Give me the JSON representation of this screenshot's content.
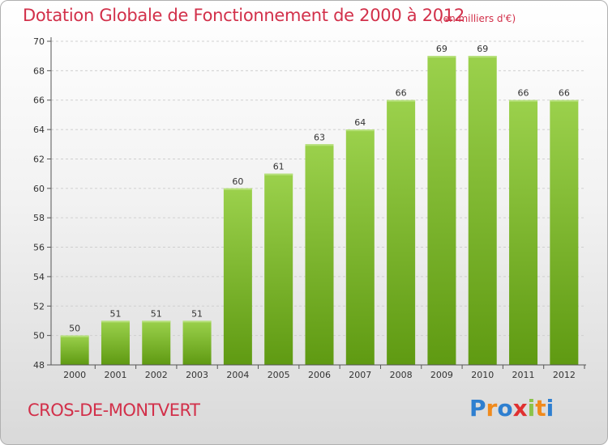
{
  "chart_data": {
    "type": "bar",
    "title": "Dotation Globale de Fonctionnement de 2000 à 2012",
    "unit_note": "(en milliers d'€)",
    "categories": [
      "2000",
      "2001",
      "2002",
      "2003",
      "2004",
      "2005",
      "2006",
      "2007",
      "2008",
      "2009",
      "2010",
      "2011",
      "2012"
    ],
    "values": [
      50,
      51,
      51,
      51,
      60,
      61,
      63,
      64,
      66,
      69,
      69,
      66,
      66
    ],
    "ylim": [
      48,
      70
    ],
    "yticks": [
      48,
      50,
      52,
      54,
      56,
      58,
      60,
      62,
      64,
      66,
      68,
      70
    ],
    "grid": true,
    "xlabel": "",
    "ylabel": "",
    "bar_color_top": "#9bd14c",
    "bar_color_bottom": "#5f9a12"
  },
  "footer": {
    "commune": "CROS-DE-MONTVERT",
    "logo_letters": [
      "P",
      "r",
      "o",
      "x",
      "i",
      "t",
      "i"
    ],
    "logo_colors": [
      "#2e7fd0",
      "#f08a1c",
      "#2e7fd0",
      "#e03030",
      "#8bc34a",
      "#f08a1c",
      "#2e7fd0"
    ]
  }
}
